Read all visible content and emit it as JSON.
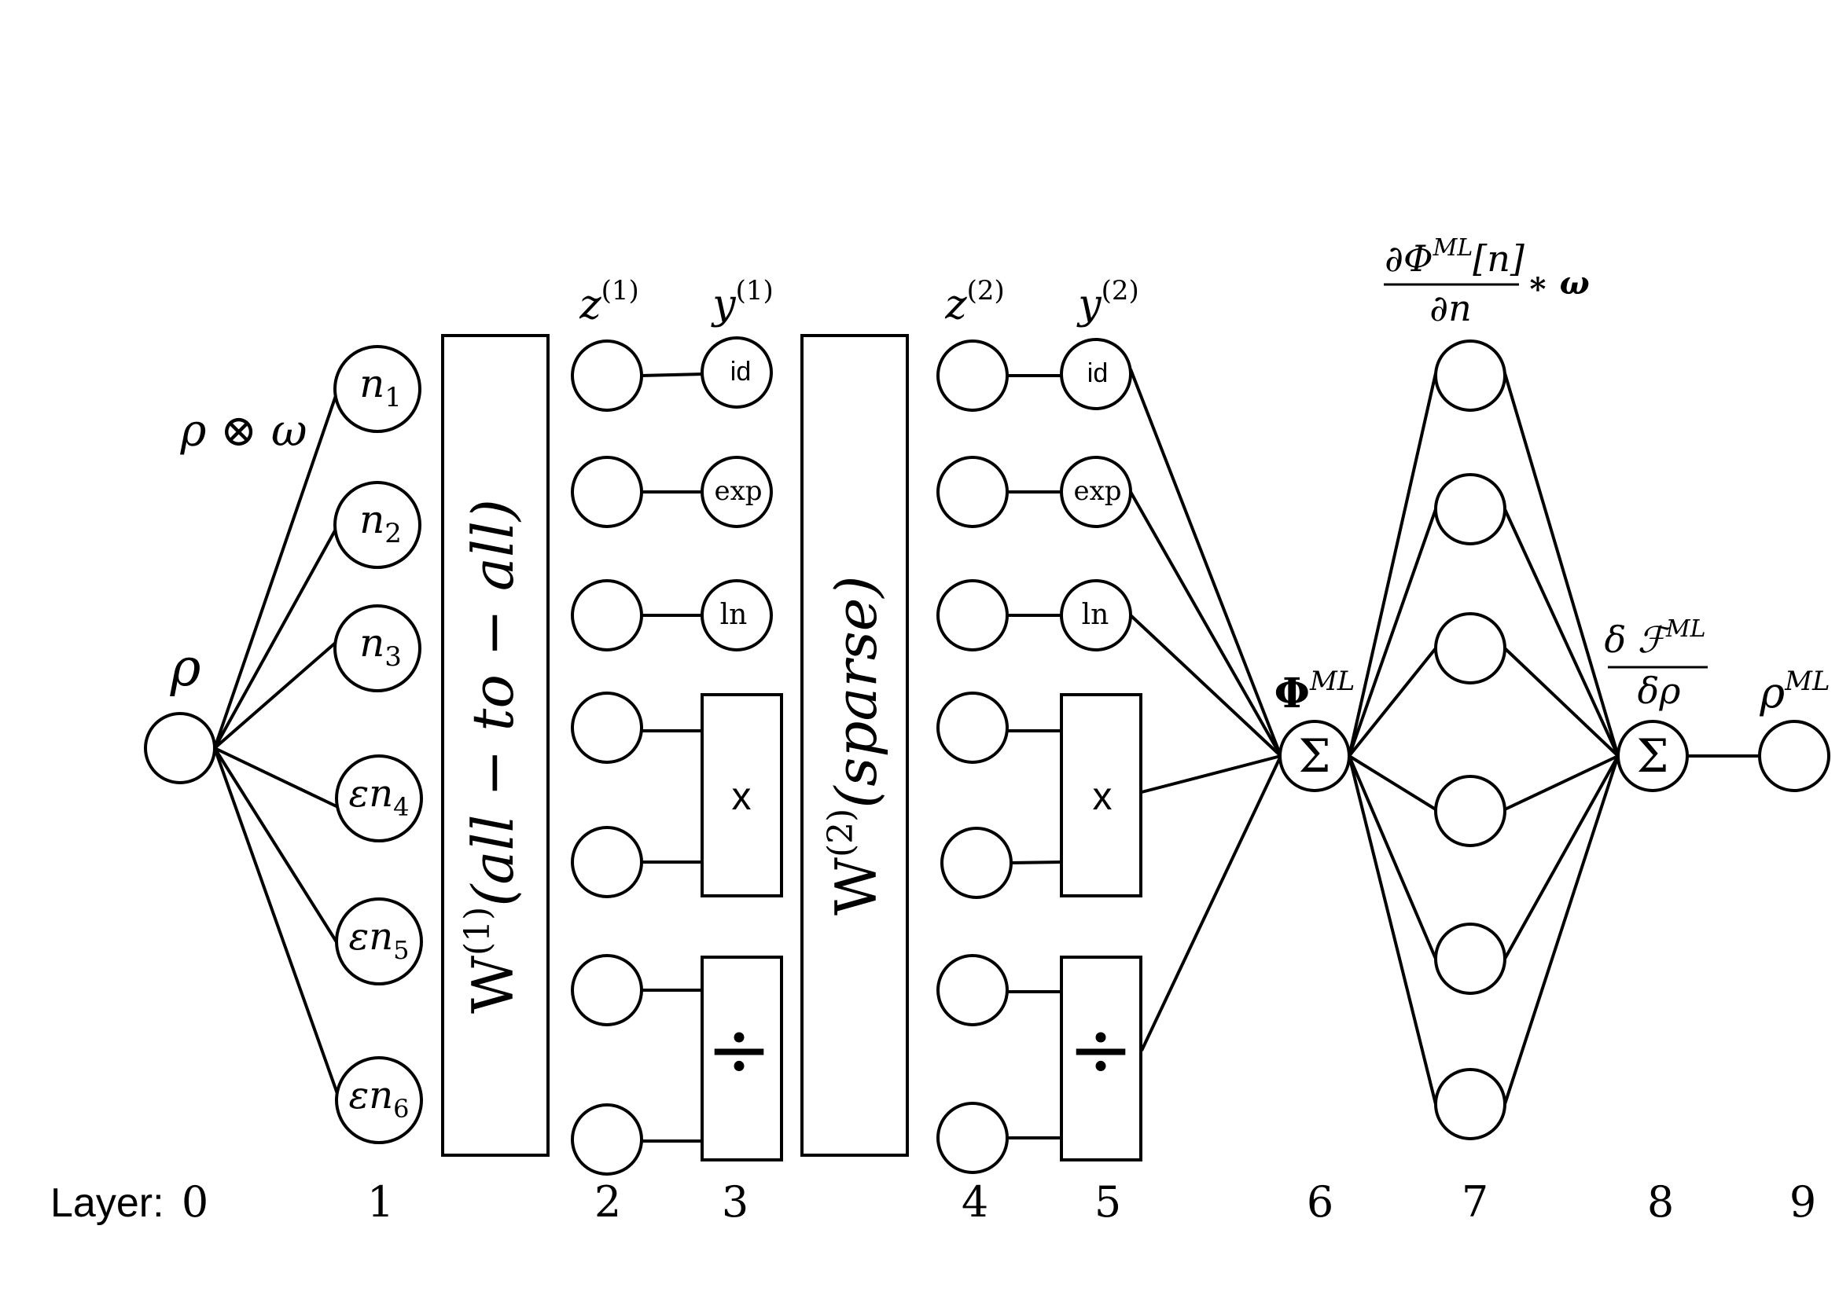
{
  "diagram": {
    "input_label": "ρ",
    "product_label": "ρ ⊗ ω",
    "n_labels": [
      {
        "pre": "",
        "base": "n",
        "sub": "1"
      },
      {
        "pre": "",
        "base": "n",
        "sub": "2"
      },
      {
        "pre": "",
        "base": "n",
        "sub": "3"
      },
      {
        "pre": "ε",
        "base": "n",
        "sub": "4"
      },
      {
        "pre": "ε",
        "base": "n",
        "sub": "5"
      },
      {
        "pre": "ε",
        "base": "n",
        "sub": "6"
      }
    ],
    "w1": {
      "base": "W",
      "sup": "(1)",
      "arg": "(all − to − all)"
    },
    "w2": {
      "base": "W",
      "sup": "(2)",
      "arg": "(sparse)"
    },
    "z1": {
      "base": "z",
      "sup": "(1)"
    },
    "y1": {
      "base": "y",
      "sup": "(1)"
    },
    "z2": {
      "base": "z",
      "sup": "(2)"
    },
    "y2": {
      "base": "y",
      "sup": "(2)"
    },
    "activations": {
      "id": "id",
      "exp": "exp",
      "ln": "ln",
      "mul": "x",
      "div": "÷"
    },
    "sum_symbol": "Σ",
    "phi_label": {
      "base": "Φ",
      "sup": "ML"
    },
    "grad_label": {
      "num": "∂Φ",
      "num_sup": "ML",
      "num_tail": "[n]",
      "den": "∂n",
      "tail": "∗ ω"
    },
    "func_deriv_label": {
      "num": "δ ℱ",
      "num_sup": "ML",
      "den": "δρ"
    },
    "output_label": {
      "base": "ρ",
      "sup": "ML"
    },
    "layer_prefix": "Layer:",
    "layers": [
      "0",
      "1",
      "2",
      "3",
      "4",
      "5",
      "6",
      "7",
      "8",
      "9"
    ]
  }
}
